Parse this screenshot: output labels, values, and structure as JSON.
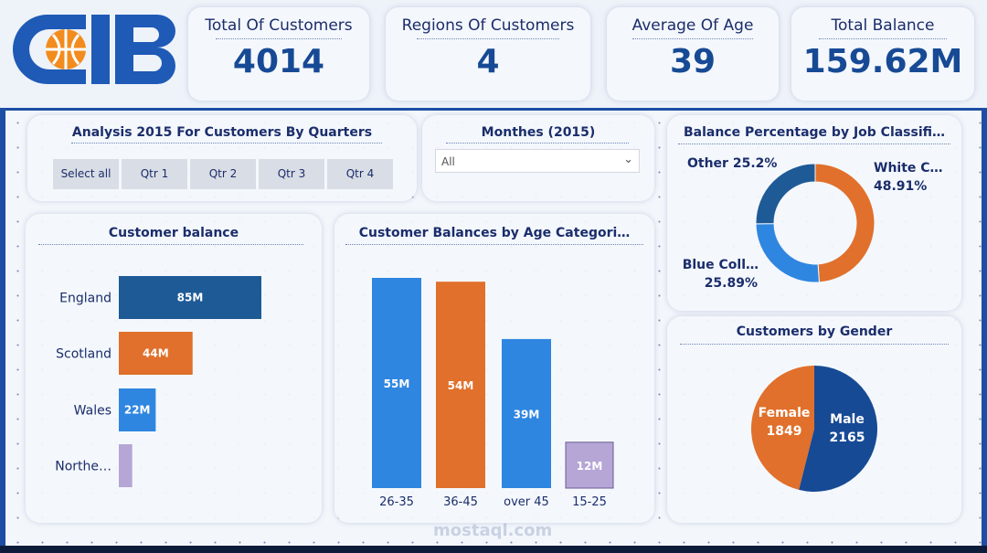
{
  "kpis": [
    {
      "title": "Total Of Customers",
      "value": "4014"
    },
    {
      "title": "Regions Of Customers",
      "value": "4"
    },
    {
      "title": "Average Of Age",
      "value": "39"
    },
    {
      "title": "Total Balance",
      "value": "159.62M"
    }
  ],
  "logo": {
    "text": "CIB"
  },
  "slicer_quarters": {
    "title": "Analysis 2015 For Customers By Quarters",
    "buttons": [
      "Select all",
      "Qtr 1",
      "Qtr 2",
      "Qtr 3",
      "Qtr 4"
    ]
  },
  "slicer_months": {
    "title": "Monthes (2015)",
    "selected": "All",
    "chevron_icon": "chevron-down-icon"
  },
  "watermark": "mostaql.com",
  "colors": {
    "blue_dark": "#1e5a96",
    "orange": "#e0702b",
    "blue": "#2f86e0",
    "purple": "#b5a6d6",
    "navy": "#174a95"
  },
  "chart_data": [
    {
      "type": "bar",
      "orientation": "horizontal",
      "title": "Customer balance",
      "categories": [
        "England",
        "Scotland",
        "Wales",
        "Northe…"
      ],
      "values": [
        85,
        44,
        22,
        8
      ],
      "data_labels": [
        "85M",
        "44M",
        "22M",
        ""
      ],
      "colors": [
        "#1e5a96",
        "#e0702b",
        "#2f86e0",
        "#b5a6d6"
      ]
    },
    {
      "type": "bar",
      "title": "Customer Balances by Age Categori…",
      "categories": [
        "26-35",
        "36-45",
        "over 45",
        "15-25"
      ],
      "values": [
        55,
        54,
        39,
        12
      ],
      "data_labels": [
        "55M",
        "54M",
        "39M",
        "12M"
      ],
      "colors": [
        "#2f86e0",
        "#e0702b",
        "#2f86e0",
        "#b5a6d6"
      ]
    },
    {
      "type": "pie",
      "style": "donut",
      "title": "Balance Percentage by Job Classifi…",
      "labels": [
        "White C…",
        "Blue Coll…",
        "Other"
      ],
      "values": [
        48.91,
        25.89,
        25.2
      ],
      "pct_labels": [
        "48.91%",
        "25.89%",
        "25.2%"
      ],
      "colors": [
        "#e0702b",
        "#2f86e0",
        "#1e5a96"
      ]
    },
    {
      "type": "pie",
      "title": "Customers  by Gender",
      "labels": [
        "Male",
        "Female"
      ],
      "values": [
        2165,
        1849
      ],
      "value_labels": [
        "2165",
        "1849"
      ],
      "colors": [
        "#174a95",
        "#e0702b"
      ]
    }
  ]
}
